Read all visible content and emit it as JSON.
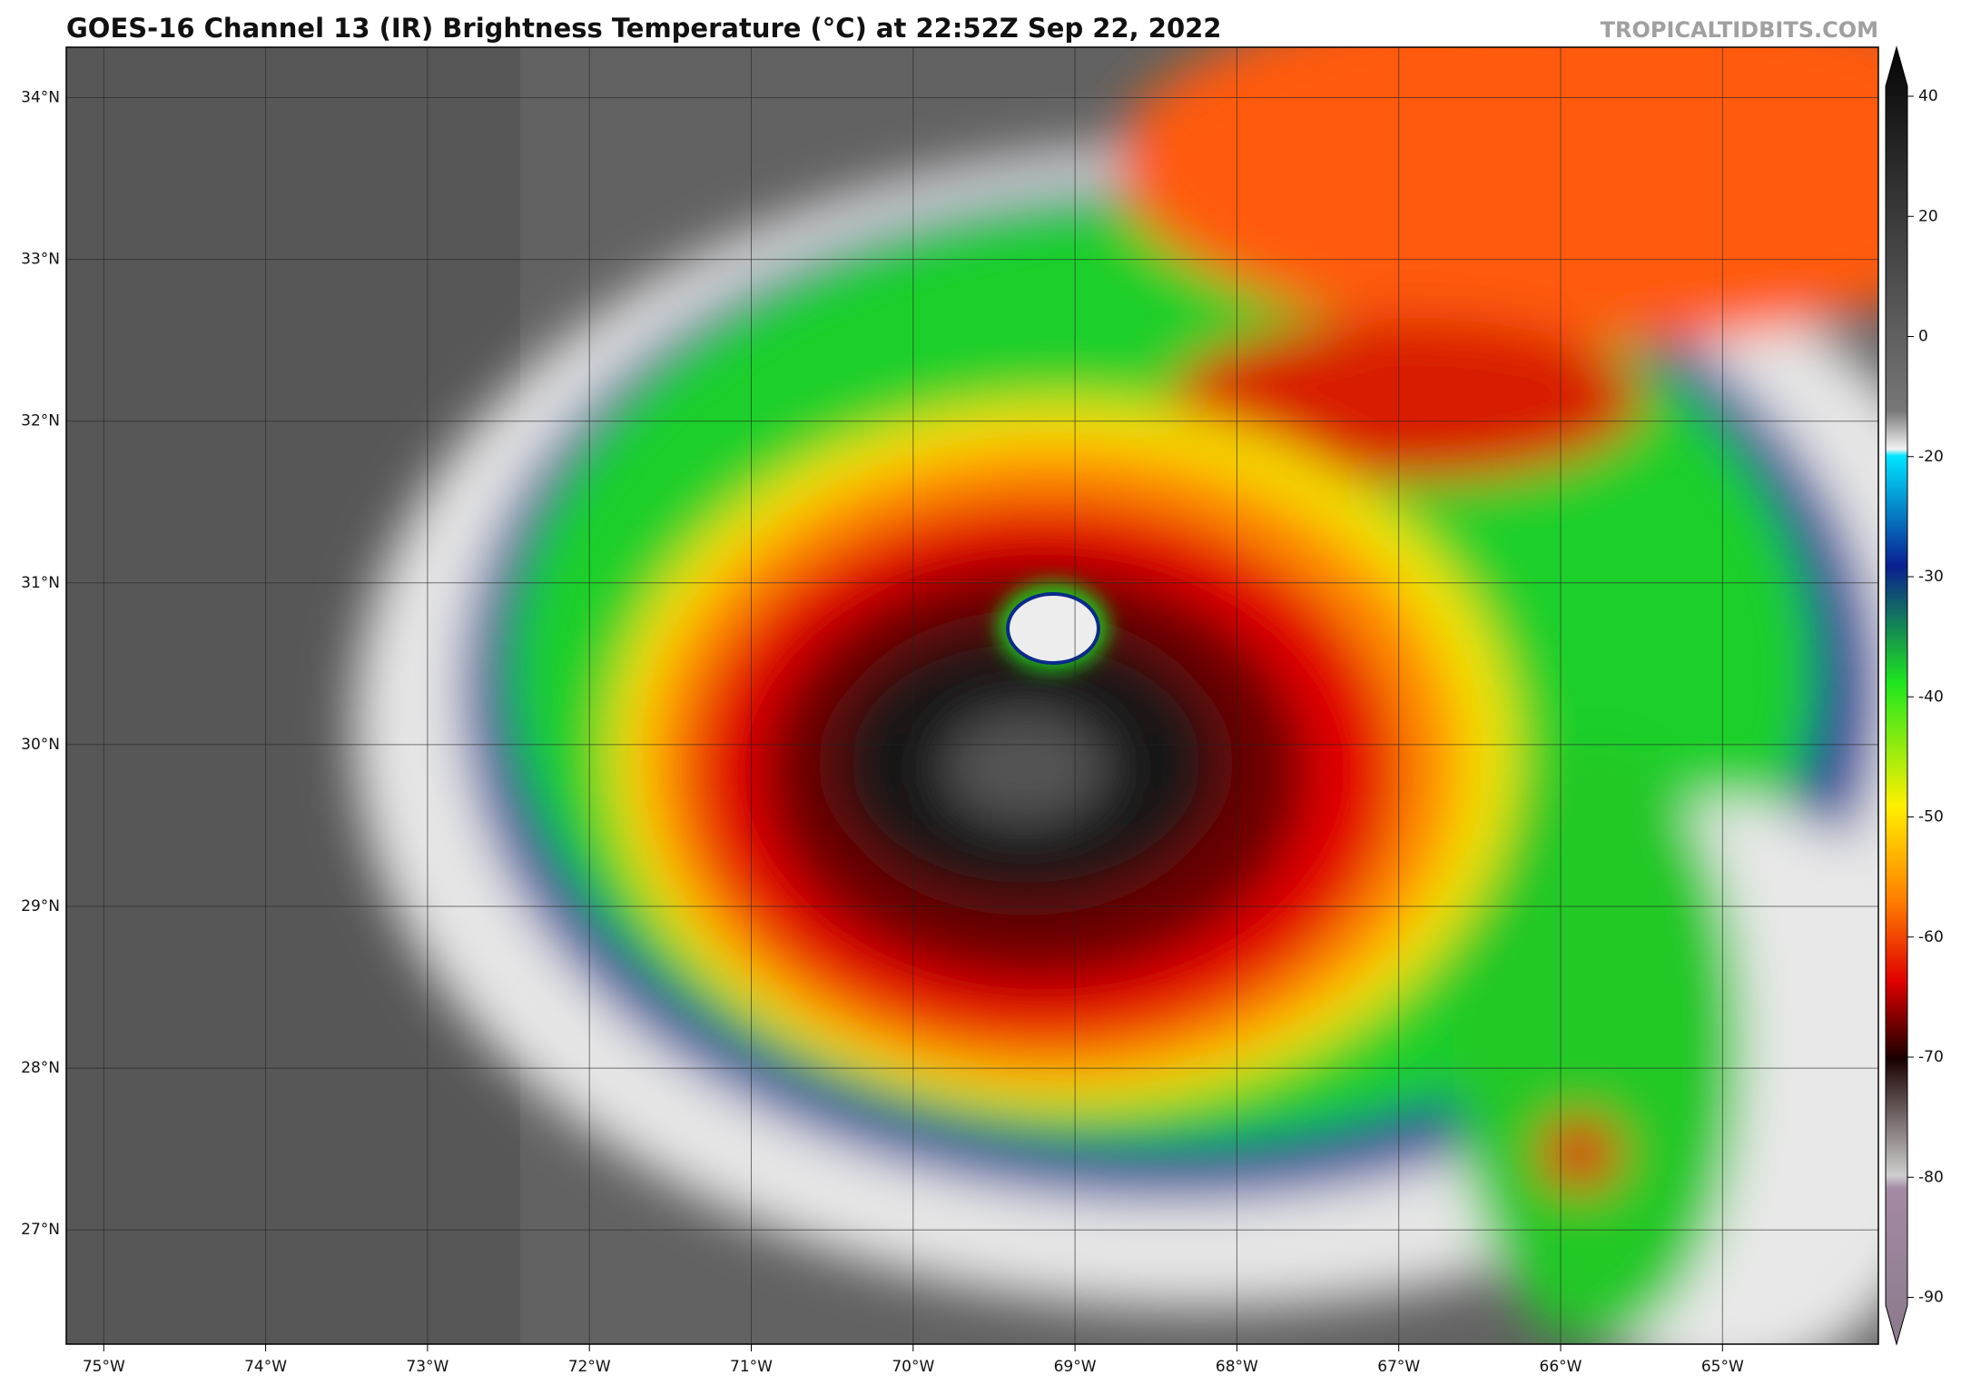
{
  "header": {
    "title": "GOES-16 Channel 13 (IR) Brightness Temperature (°C) at 22:52Z Sep 22, 2022",
    "credit": "TROPICALTIDBITS.COM"
  },
  "map": {
    "lat_labels": [
      "34°N",
      "33°N",
      "32°N",
      "31°N",
      "30°N",
      "29°N",
      "28°N",
      "27°N"
    ],
    "lon_labels": [
      "75°W",
      "74°W",
      "73°W",
      "72°W",
      "71°W",
      "70°W",
      "69°W",
      "68°W",
      "67°W",
      "66°W",
      "65°W"
    ]
  },
  "colorbar": {
    "ticks": [
      40,
      20,
      0,
      -20,
      -30,
      -40,
      -50,
      -60,
      -70,
      -80,
      -90
    ]
  }
}
